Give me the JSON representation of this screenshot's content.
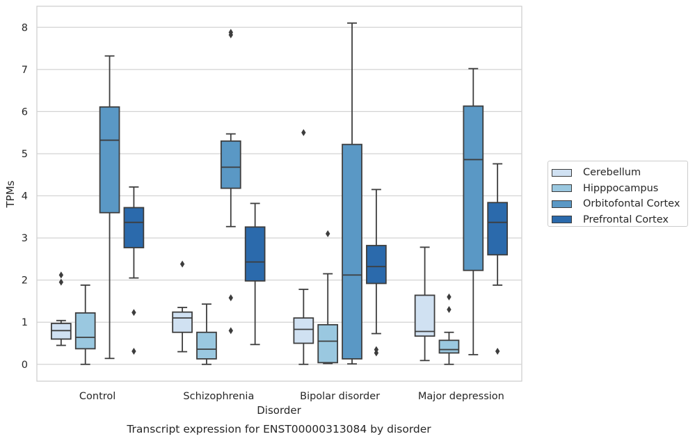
{
  "chart_data": {
    "type": "box",
    "title": "Transcript expression for ENST00000313084 by disorder",
    "xlabel": "Disorder",
    "ylabel": "TPMs",
    "ylim": [
      -0.4,
      8.5
    ],
    "yticks": [
      0,
      1,
      2,
      3,
      4,
      5,
      6,
      7,
      8
    ],
    "grid": "horizontal",
    "legend_position": "center-right",
    "categories": [
      "Control",
      "Schizophrenia",
      "Bipolar disorder",
      "Major depression"
    ],
    "series": [
      {
        "name": "Cerebellum",
        "color": "#d0e1f2",
        "boxes": [
          {
            "whislo": 0.45,
            "q1": 0.6,
            "median": 0.8,
            "q3": 0.97,
            "whishi": 1.04,
            "fliers": [
              1.95,
              2.12
            ]
          },
          {
            "whislo": 0.3,
            "q1": 0.76,
            "median": 1.1,
            "q3": 1.24,
            "whishi": 1.35,
            "fliers": [
              2.38
            ]
          },
          {
            "whislo": 0.0,
            "q1": 0.5,
            "median": 0.83,
            "q3": 1.1,
            "whishi": 1.78,
            "fliers": [
              5.5
            ]
          },
          {
            "whislo": 0.09,
            "q1": 0.67,
            "median": 0.78,
            "q3": 1.64,
            "whishi": 2.78,
            "fliers": []
          }
        ]
      },
      {
        "name": "Hipppocampus",
        "color": "#9ac8e0",
        "boxes": [
          {
            "whislo": 0.0,
            "q1": 0.37,
            "median": 0.64,
            "q3": 1.22,
            "whishi": 1.88,
            "fliers": []
          },
          {
            "whislo": 0.0,
            "q1": 0.13,
            "median": 0.36,
            "q3": 0.76,
            "whishi": 1.43,
            "fliers": []
          },
          {
            "whislo": 0.02,
            "q1": 0.04,
            "median": 0.55,
            "q3": 0.94,
            "whishi": 2.15,
            "fliers": [
              3.1
            ]
          },
          {
            "whislo": 0.0,
            "q1": 0.27,
            "median": 0.35,
            "q3": 0.57,
            "whishi": 0.76,
            "fliers": [
              1.3,
              1.6
            ]
          }
        ]
      },
      {
        "name": "Orbitofontal Cortex",
        "color": "#5a98c5",
        "boxes": [
          {
            "whislo": 0.14,
            "q1": 3.6,
            "median": 5.32,
            "q3": 6.11,
            "whishi": 7.32,
            "fliers": []
          },
          {
            "whislo": 3.27,
            "q1": 4.18,
            "median": 4.68,
            "q3": 5.3,
            "whishi": 5.47,
            "fliers": [
              0.8,
              1.58,
              7.82,
              7.88
            ]
          },
          {
            "whislo": 0.01,
            "q1": 0.13,
            "median": 2.12,
            "q3": 5.22,
            "whishi": 8.1,
            "fliers": []
          },
          {
            "whislo": 0.23,
            "q1": 2.23,
            "median": 4.86,
            "q3": 6.13,
            "whishi": 7.02,
            "fliers": []
          }
        ]
      },
      {
        "name": "Prefrontal Cortex",
        "color": "#2b6aac",
        "boxes": [
          {
            "whislo": 2.05,
            "q1": 2.77,
            "median": 3.37,
            "q3": 3.72,
            "whishi": 4.21,
            "fliers": [
              0.31,
              1.23
            ]
          },
          {
            "whislo": 0.47,
            "q1": 1.98,
            "median": 2.43,
            "q3": 3.26,
            "whishi": 3.82,
            "fliers": []
          },
          {
            "whislo": 0.73,
            "q1": 1.92,
            "median": 2.32,
            "q3": 2.82,
            "whishi": 4.15,
            "fliers": [
              0.27,
              0.35
            ]
          },
          {
            "whislo": 1.88,
            "q1": 2.6,
            "median": 3.37,
            "q3": 3.84,
            "whishi": 4.76,
            "fliers": [
              0.31
            ]
          }
        ]
      }
    ]
  }
}
